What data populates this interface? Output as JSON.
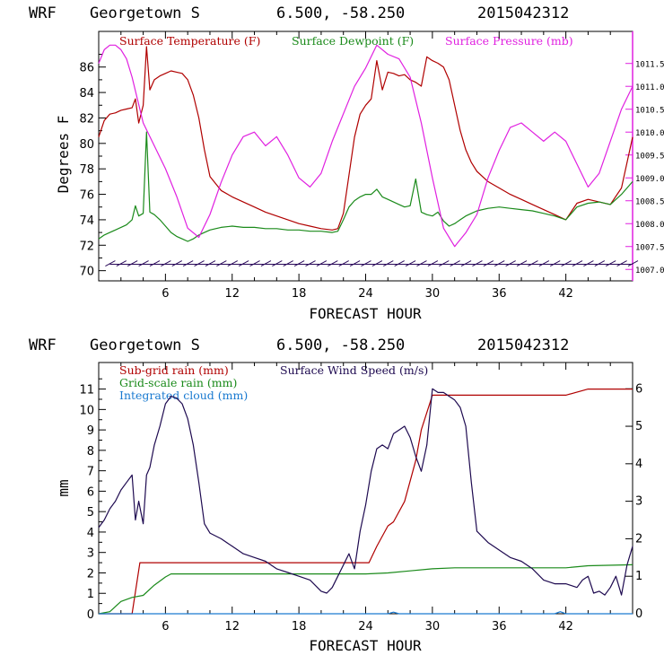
{
  "chart_data": [
    {
      "type": "line",
      "header": {
        "model": "WRF",
        "location": "Georgetown S",
        "coords": "6.500, -58.250",
        "init": "2015042312"
      },
      "xlabel": "FORECAST HOUR",
      "ylabel": "Degrees F",
      "xlim": [
        0,
        48
      ],
      "ylim": [
        69.2,
        88.8
      ],
      "y2lim": [
        1006.75,
        1012.2
      ],
      "x_ticks": [
        "6",
        "12",
        "18",
        "24",
        "30",
        "36",
        "42"
      ],
      "y_ticks": [
        "70",
        "72",
        "74",
        "76",
        "78",
        "80",
        "82",
        "84",
        "86"
      ],
      "y2_ticks": [
        "1007.0",
        "1007.5",
        "1008.0",
        "1008.5",
        "1009.0",
        "1009.5",
        "1010.0",
        "1010.5",
        "1011.0",
        "1011.5"
      ],
      "legend": [
        {
          "label": "Surface Temperature (F)",
          "color": "#b00000"
        },
        {
          "label": "Surface Dewpoint (F)",
          "color": "#1a8a1a"
        },
        {
          "label": "Surface Pressure (mb)",
          "color": "#e020e0"
        }
      ],
      "series": [
        {
          "name": "Surface Temperature (F)",
          "color": "#b00000",
          "axis": "left",
          "x": [
            0,
            0.5,
            1,
            1.5,
            2,
            2.5,
            3,
            3.3,
            3.6,
            4,
            4.3,
            4.6,
            5,
            5.5,
            6,
            6.5,
            7,
            7.5,
            8,
            8.5,
            9,
            9.5,
            10,
            11,
            12,
            13,
            14,
            15,
            16,
            17,
            18,
            19,
            20,
            21,
            21.5,
            22,
            22.5,
            23,
            23.5,
            24,
            24.5,
            25,
            25.5,
            26,
            26.5,
            27,
            27.5,
            28,
            28.5,
            29,
            29.5,
            30,
            30.5,
            31,
            31.5,
            32,
            32.5,
            33,
            33.5,
            34,
            35,
            36,
            37,
            38,
            39,
            40,
            41,
            42,
            43,
            44,
            45,
            46,
            47,
            48
          ],
          "y": [
            80.5,
            81.8,
            82.3,
            82.4,
            82.6,
            82.7,
            82.8,
            83.5,
            81.6,
            83.0,
            87.6,
            84.2,
            85.0,
            85.3,
            85.5,
            85.7,
            85.6,
            85.5,
            85.0,
            83.8,
            82.0,
            79.5,
            77.4,
            76.3,
            75.8,
            75.4,
            75.0,
            74.6,
            74.3,
            74.0,
            73.7,
            73.5,
            73.3,
            73.2,
            73.3,
            74.5,
            77.5,
            80.5,
            82.3,
            83.0,
            83.5,
            86.5,
            84.2,
            85.6,
            85.5,
            85.3,
            85.4,
            85.0,
            84.8,
            84.5,
            86.8,
            86.5,
            86.3,
            86.0,
            85.0,
            83.0,
            81.0,
            79.5,
            78.5,
            77.8,
            77.0,
            76.5,
            76.0,
            75.6,
            75.2,
            74.8,
            74.4,
            74.0,
            75.3,
            75.6,
            75.4,
            75.2,
            76.5,
            80.5
          ]
        },
        {
          "name": "Surface Dewpoint (F)",
          "color": "#1a8a1a",
          "axis": "left",
          "x": [
            0,
            0.5,
            1,
            1.5,
            2,
            2.5,
            3,
            3.3,
            3.6,
            4,
            4.3,
            4.6,
            5,
            5.5,
            6,
            6.5,
            7,
            7.5,
            8,
            8.5,
            9,
            9.5,
            10,
            11,
            12,
            13,
            14,
            15,
            16,
            17,
            18,
            19,
            20,
            21,
            21.5,
            22,
            22.5,
            23,
            23.5,
            24,
            24.5,
            25,
            25.5,
            26,
            26.5,
            27,
            27.5,
            28,
            28.5,
            29,
            29.5,
            30,
            30.5,
            31,
            31.5,
            32,
            32.5,
            33,
            33.5,
            34,
            35,
            36,
            37,
            38,
            39,
            40,
            41,
            42,
            43,
            44,
            45,
            46,
            47,
            48
          ],
          "y": [
            72.5,
            72.8,
            73.0,
            73.2,
            73.4,
            73.6,
            74.0,
            75.1,
            74.3,
            74.5,
            80.9,
            74.6,
            74.4,
            74.0,
            73.5,
            73.0,
            72.7,
            72.5,
            72.3,
            72.5,
            72.8,
            73.0,
            73.2,
            73.4,
            73.5,
            73.4,
            73.4,
            73.3,
            73.3,
            73.2,
            73.2,
            73.1,
            73.1,
            73.0,
            73.1,
            74.0,
            75.0,
            75.5,
            75.8,
            76.0,
            76.0,
            76.4,
            75.8,
            75.6,
            75.4,
            75.2,
            75.0,
            75.1,
            77.2,
            74.6,
            74.4,
            74.3,
            74.6,
            73.9,
            73.5,
            73.7,
            74.0,
            74.3,
            74.5,
            74.7,
            74.9,
            75.0,
            74.9,
            74.8,
            74.7,
            74.5,
            74.3,
            74.0,
            75.0,
            75.3,
            75.4,
            75.2,
            76.0,
            77.0
          ]
        },
        {
          "name": "Surface Pressure (mb)",
          "color": "#e020e0",
          "axis": "right",
          "x": [
            0,
            0.5,
            1,
            1.5,
            2,
            2.5,
            3,
            4,
            5,
            6,
            7,
            8,
            9,
            10,
            11,
            12,
            13,
            14,
            15,
            16,
            17,
            18,
            19,
            20,
            21,
            22,
            23,
            24,
            25,
            26,
            27,
            28,
            29,
            30,
            31,
            32,
            33,
            34,
            35,
            36,
            37,
            38,
            39,
            40,
            41,
            42,
            43,
            44,
            45,
            46,
            47,
            48
          ],
          "y": [
            1011.5,
            1011.8,
            1011.9,
            1011.9,
            1011.8,
            1011.6,
            1011.2,
            1010.2,
            1009.7,
            1009.2,
            1008.6,
            1007.9,
            1007.7,
            1008.2,
            1008.9,
            1009.5,
            1009.9,
            1010.0,
            1009.7,
            1009.9,
            1009.5,
            1009.0,
            1008.8,
            1009.1,
            1009.8,
            1010.4,
            1011.0,
            1011.4,
            1011.9,
            1011.7,
            1011.6,
            1011.2,
            1010.2,
            1009.0,
            1007.9,
            1007.5,
            1007.8,
            1008.2,
            1009.0,
            1009.6,
            1010.1,
            1010.2,
            1010.0,
            1009.8,
            1010.0,
            1009.8,
            1009.3,
            1008.8,
            1009.1,
            1009.8,
            1010.5,
            1011.0
          ]
        }
      ],
      "wind_barbs": {
        "y": 70.5,
        "x_start": 1,
        "x_end": 48,
        "count": 48,
        "color": "#2a0a5a"
      }
    },
    {
      "type": "line",
      "header": {
        "model": "WRF",
        "location": "Georgetown S",
        "coords": "6.500, -58.250",
        "init": "2015042312"
      },
      "xlabel": "FORECAST HOUR",
      "ylabel": "mm",
      "xlim": [
        0,
        48
      ],
      "ylim": [
        0,
        12.3
      ],
      "y2lim": [
        0,
        6.7
      ],
      "x_ticks": [
        "6",
        "12",
        "18",
        "24",
        "30",
        "36",
        "42"
      ],
      "y_ticks": [
        "0",
        "1",
        "2",
        "3",
        "4",
        "5",
        "6",
        "7",
        "8",
        "9",
        "10",
        "11"
      ],
      "y2_ticks": [
        "0",
        "1",
        "2",
        "3",
        "4",
        "5",
        "6"
      ],
      "legend": [
        {
          "label": "Sub-grid rain (mm)",
          "color": "#b00000"
        },
        {
          "label": "Surface Wind Speed (m/s)",
          "color": "#1e0a50"
        },
        {
          "label": "Grid-scale rain (mm)",
          "color": "#1a8a1a"
        },
        {
          "label": "Integrated cloud (mm)",
          "color": "#1a7ad0"
        }
      ],
      "series": [
        {
          "name": "Sub-grid rain (mm)",
          "color": "#b00000",
          "axis": "left",
          "x": [
            0,
            3,
            3.7,
            23.5,
            24.3,
            25,
            26,
            26.5,
            27.5,
            28.5,
            29,
            30,
            31,
            42,
            44,
            48
          ],
          "y": [
            0,
            0,
            2.5,
            2.5,
            2.5,
            3.3,
            4.3,
            4.5,
            5.5,
            7.5,
            9.0,
            10.7,
            10.7,
            10.7,
            11.0,
            11.0
          ]
        },
        {
          "name": "Grid-scale rain (mm)",
          "color": "#1a8a1a",
          "axis": "left",
          "x": [
            0,
            1,
            2,
            3,
            4,
            5,
            6,
            6.5,
            7,
            24,
            26,
            28,
            30,
            32,
            42,
            44,
            48
          ],
          "y": [
            0,
            0.1,
            0.6,
            0.8,
            0.9,
            1.4,
            1.8,
            1.95,
            1.95,
            1.95,
            2.0,
            2.1,
            2.2,
            2.25,
            2.25,
            2.35,
            2.4
          ]
        },
        {
          "name": "Integrated cloud (mm)",
          "color": "#1a7ad0",
          "axis": "left",
          "x": [
            0,
            10,
            20,
            26,
            26.5,
            27,
            40,
            41,
            41.5,
            42,
            48
          ],
          "y": [
            0,
            0,
            0,
            0,
            0.08,
            0,
            0,
            0,
            0.1,
            0,
            0
          ]
        },
        {
          "name": "Surface Wind Speed (m/s)",
          "color": "#1e0a50",
          "axis": "right",
          "x": [
            0,
            0.5,
            1,
            1.5,
            2,
            2.5,
            3,
            3.3,
            3.6,
            4,
            4.3,
            4.6,
            5,
            5.5,
            6,
            6.5,
            7,
            7.5,
            8,
            8.5,
            9,
            9.5,
            10,
            11,
            12,
            13,
            14,
            15,
            16,
            17,
            18,
            19,
            20,
            20.5,
            21,
            21.5,
            22,
            22.5,
            23,
            23.5,
            24,
            24.5,
            25,
            25.5,
            26,
            26.5,
            27,
            27.5,
            28,
            28.5,
            29,
            29.5,
            30,
            30.5,
            31,
            31.5,
            32,
            32.5,
            33,
            33.5,
            34,
            35,
            36,
            37,
            38,
            39,
            40,
            41,
            42,
            43,
            43.5,
            44,
            44.5,
            45,
            45.5,
            46,
            46.5,
            47,
            47.5,
            48
          ],
          "y": [
            2.3,
            2.5,
            2.8,
            3.0,
            3.3,
            3.5,
            3.7,
            2.5,
            3.0,
            2.4,
            3.7,
            3.9,
            4.5,
            5.0,
            5.6,
            5.8,
            5.75,
            5.6,
            5.2,
            4.5,
            3.5,
            2.4,
            2.15,
            2.0,
            1.8,
            1.6,
            1.5,
            1.4,
            1.2,
            1.1,
            1.0,
            0.9,
            0.6,
            0.55,
            0.7,
            1.0,
            1.3,
            1.6,
            1.2,
            2.2,
            2.9,
            3.8,
            4.4,
            4.5,
            4.4,
            4.8,
            4.9,
            5.0,
            4.7,
            4.2,
            3.8,
            4.5,
            6.0,
            5.9,
            5.9,
            5.8,
            5.7,
            5.5,
            5.0,
            3.5,
            2.2,
            1.9,
            1.7,
            1.5,
            1.4,
            1.2,
            0.9,
            0.8,
            0.8,
            0.7,
            0.9,
            1.0,
            0.55,
            0.6,
            0.5,
            0.7,
            1.0,
            0.5,
            1.3,
            1.8
          ]
        }
      ]
    }
  ]
}
